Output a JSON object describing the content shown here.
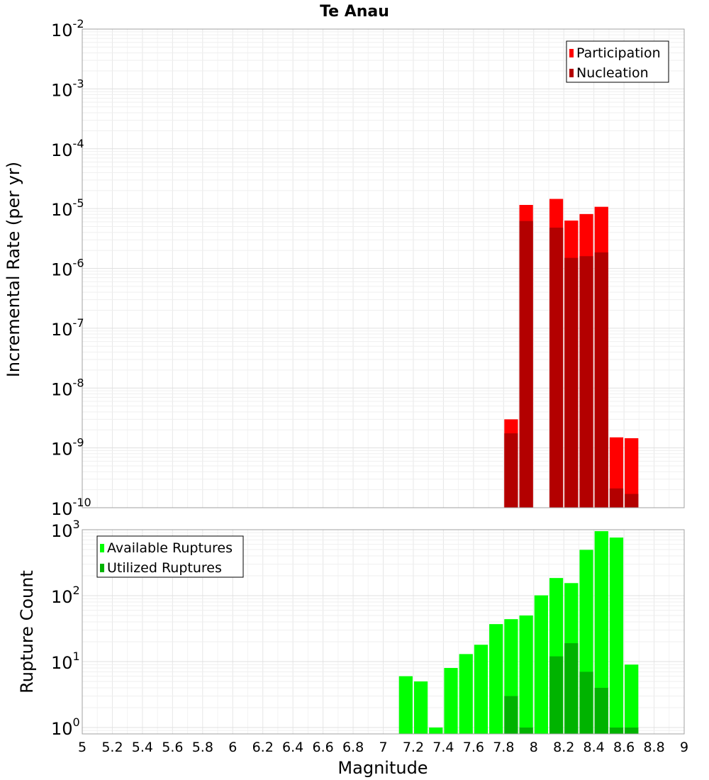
{
  "chart_data": [
    {
      "type": "bar",
      "title": "Te Anau",
      "xlabel": "",
      "ylabel": "Incremental Rate (per yr)",
      "yscale": "log",
      "xlim": [
        5,
        9
      ],
      "ylim": [
        1e-10,
        0.01
      ],
      "ytick_exponents": [
        "-10",
        "-9",
        "-8",
        "-7",
        "-6",
        "-5",
        "-4",
        "-3",
        "-2"
      ],
      "ytick_base": "10",
      "bin_width": 0.1,
      "legend_position": "top-right",
      "series": [
        {
          "name": "Participation",
          "color": "#ff0000",
          "x": [
            7.85,
            7.95,
            8.15,
            8.25,
            8.35,
            8.45,
            8.55,
            8.65
          ],
          "values": [
            3e-09,
            1.15e-05,
            1.45e-05,
            6.3e-06,
            8.1e-06,
            1.07e-05,
            1.5e-09,
            1.45e-09
          ]
        },
        {
          "name": "Nucleation",
          "color": "#b30000",
          "x": [
            7.85,
            7.95,
            8.15,
            8.25,
            8.35,
            8.45,
            8.55,
            8.65
          ],
          "values": [
            1.75e-09,
            6.2e-06,
            4.8e-06,
            1.5e-06,
            1.6e-06,
            1.85e-06,
            2.1e-10,
            1.7e-10
          ]
        }
      ]
    },
    {
      "type": "bar",
      "title": "",
      "xlabel": "Magnitude",
      "ylabel": "Rupture Count",
      "yscale": "log",
      "xlim": [
        5,
        9
      ],
      "ylim": [
        0.8,
        1000
      ],
      "ytick_exponents": [
        "0",
        "1",
        "2",
        "3"
      ],
      "ytick_base": "10",
      "bin_width": 0.1,
      "x_tick_labels": [
        "5",
        "5.2",
        "5.4",
        "5.6",
        "5.8",
        "6",
        "6.2",
        "6.4",
        "6.6",
        "6.8",
        "7",
        "7.2",
        "7.4",
        "7.6",
        "7.8",
        "8",
        "8.2",
        "8.4",
        "8.6",
        "8.8",
        "9"
      ],
      "legend_position": "top-left",
      "series": [
        {
          "name": "Available Ruptures",
          "color": "#00ff00",
          "x": [
            7.15,
            7.25,
            7.35,
            7.45,
            7.55,
            7.65,
            7.75,
            7.85,
            7.95,
            8.05,
            8.15,
            8.25,
            8.35,
            8.45,
            8.55,
            8.65
          ],
          "values": [
            6,
            5,
            1,
            8,
            13,
            18,
            37,
            44,
            50,
            101,
            185,
            155,
            495,
            950,
            760,
            9
          ]
        },
        {
          "name": "Utilized Ruptures",
          "color": "#00b300",
          "x": [
            7.85,
            7.95,
            8.15,
            8.25,
            8.35,
            8.45,
            8.55,
            8.65
          ],
          "values": [
            3,
            1,
            12,
            19,
            7,
            4,
            1,
            1
          ]
        }
      ]
    }
  ]
}
